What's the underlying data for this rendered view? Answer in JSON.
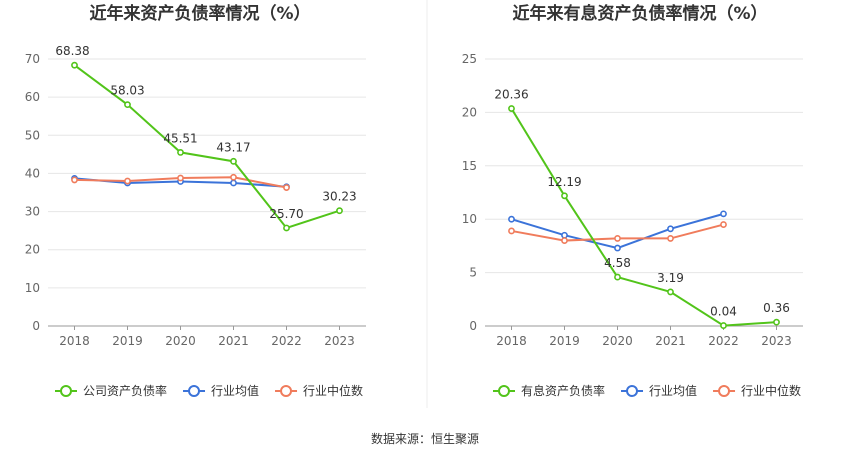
{
  "source_text": "数据来源：恒生聚源",
  "chart_data": [
    {
      "type": "line",
      "title": "近年来资产负债率情况（%）",
      "categories": [
        "2018",
        "2019",
        "2020",
        "2021",
        "2022",
        "2023"
      ],
      "ylim": [
        0,
        70
      ],
      "yticks": [
        0,
        10,
        20,
        30,
        40,
        50,
        60,
        70
      ],
      "grid": true,
      "legend_position": "bottom",
      "series": [
        {
          "name": "公司资产负债率",
          "color": "#52c41a",
          "values": [
            68.38,
            58.03,
            45.51,
            43.17,
            25.7,
            30.23
          ],
          "labels": [
            "68.38",
            "58.03",
            "45.51",
            "43.17",
            "25.70",
            "30.23"
          ]
        },
        {
          "name": "行业均值",
          "color": "#3b73d9",
          "values": [
            38.7,
            37.5,
            37.9,
            37.5,
            36.5,
            null
          ]
        },
        {
          "name": "行业中位数",
          "color": "#f07c5c",
          "values": [
            38.3,
            38.0,
            38.8,
            39.0,
            36.3,
            null
          ]
        }
      ]
    },
    {
      "type": "line",
      "title": "近年来有息资产负债率情况（%）",
      "categories": [
        "2018",
        "2019",
        "2020",
        "2021",
        "2022",
        "2023"
      ],
      "ylim": [
        0,
        25
      ],
      "yticks": [
        0,
        5,
        10,
        15,
        20,
        25
      ],
      "grid": true,
      "legend_position": "bottom",
      "series": [
        {
          "name": "有息资产负债率",
          "color": "#52c41a",
          "values": [
            20.36,
            12.19,
            4.58,
            3.19,
            0.04,
            0.36
          ],
          "labels": [
            "20.36",
            "12.19",
            "4.58",
            "3.19",
            "0.04",
            "0.36"
          ]
        },
        {
          "name": "行业均值",
          "color": "#3b73d9",
          "values": [
            10.0,
            8.5,
            7.3,
            9.1,
            10.5,
            null
          ]
        },
        {
          "name": "行业中位数",
          "color": "#f07c5c",
          "values": [
            8.9,
            8.0,
            8.2,
            8.2,
            9.5,
            null
          ]
        }
      ]
    }
  ]
}
